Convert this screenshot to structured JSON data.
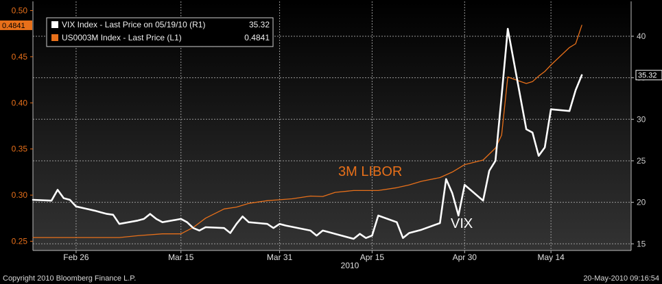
{
  "chart_data": {
    "type": "line",
    "left_axis": {
      "ticks": [
        0.25,
        0.3,
        0.35,
        0.4,
        0.45,
        0.5
      ],
      "ylim": [
        0.24,
        0.51
      ],
      "color": "#e8701a"
    },
    "right_axis": {
      "ticks": [
        15,
        20,
        25,
        30,
        35,
        40
      ],
      "ylim": [
        14.2,
        44.2
      ],
      "color": "#cccccc"
    },
    "x_ticks": [
      {
        "label": "Feb 26",
        "date": "2010-02-26"
      },
      {
        "label": "Mar 15",
        "date": "2010-03-15"
      },
      {
        "label": "Mar 31",
        "date": "2010-03-31"
      },
      {
        "label": "Apr 15",
        "date": "2010-04-15"
      },
      {
        "label": "Apr 30",
        "date": "2010-04-30"
      },
      {
        "label": "May 14",
        "date": "2010-05-14"
      }
    ],
    "year_label": "2010",
    "xlim": [
      "2010-02-19",
      "2010-05-27"
    ],
    "grid": true,
    "series": [
      {
        "name": "VIX Index - Last Price on 05/19/10 (R1)",
        "legend_value": "35.32",
        "color": "#ffffff",
        "axis": "right",
        "x": [
          "2010-02-19",
          "2010-02-22",
          "2010-02-23",
          "2010-02-24",
          "2010-02-25",
          "2010-02-26",
          "2010-03-01",
          "2010-03-02",
          "2010-03-03",
          "2010-03-04",
          "2010-03-05",
          "2010-03-08",
          "2010-03-09",
          "2010-03-10",
          "2010-03-11",
          "2010-03-12",
          "2010-03-15",
          "2010-03-16",
          "2010-03-17",
          "2010-03-18",
          "2010-03-19",
          "2010-03-22",
          "2010-03-23",
          "2010-03-24",
          "2010-03-25",
          "2010-03-26",
          "2010-03-29",
          "2010-03-30",
          "2010-03-31",
          "2010-04-01",
          "2010-04-05",
          "2010-04-06",
          "2010-04-07",
          "2010-04-08",
          "2010-04-09",
          "2010-04-12",
          "2010-04-13",
          "2010-04-14",
          "2010-04-15",
          "2010-04-16",
          "2010-04-19",
          "2010-04-20",
          "2010-04-21",
          "2010-04-22",
          "2010-04-23",
          "2010-04-26",
          "2010-04-27",
          "2010-04-28",
          "2010-04-29",
          "2010-04-30",
          "2010-05-03",
          "2010-05-04",
          "2010-05-05",
          "2010-05-06",
          "2010-05-07",
          "2010-05-10",
          "2010-05-11",
          "2010-05-12",
          "2010-05-13",
          "2010-05-14",
          "2010-05-17",
          "2010-05-18",
          "2010-05-19"
        ],
        "values": [
          20.3,
          20.2,
          21.5,
          20.5,
          20.3,
          19.5,
          19.0,
          18.8,
          18.6,
          18.5,
          17.4,
          17.8,
          18.0,
          18.6,
          18.0,
          17.6,
          18.0,
          17.6,
          16.9,
          16.6,
          17.0,
          16.9,
          16.3,
          17.4,
          18.3,
          17.6,
          17.4,
          16.9,
          17.4,
          17.2,
          16.6,
          16.0,
          16.6,
          16.4,
          16.2,
          15.6,
          16.2,
          15.7,
          16.0,
          18.4,
          17.6,
          15.7,
          16.3,
          16.5,
          16.7,
          17.5,
          22.8,
          21.1,
          18.4,
          22.1,
          20.2,
          23.8,
          25.0,
          32.8,
          40.9,
          28.8,
          28.4,
          25.6,
          26.6,
          31.2,
          31.0,
          33.5,
          35.32
        ]
      },
      {
        "name": "US0003M Index - Last Price (L1)",
        "legend_value": "0.4841",
        "color": "#e8701a",
        "axis": "left",
        "x": [
          "2010-02-19",
          "2010-03-01",
          "2010-03-05",
          "2010-03-08",
          "2010-03-12",
          "2010-03-15",
          "2010-03-17",
          "2010-03-19",
          "2010-03-22",
          "2010-03-24",
          "2010-03-26",
          "2010-03-29",
          "2010-03-31",
          "2010-04-02",
          "2010-04-05",
          "2010-04-07",
          "2010-04-09",
          "2010-04-12",
          "2010-04-14",
          "2010-04-16",
          "2010-04-19",
          "2010-04-21",
          "2010-04-23",
          "2010-04-26",
          "2010-04-28",
          "2010-04-30",
          "2010-05-03",
          "2010-05-05",
          "2010-05-06",
          "2010-05-07",
          "2010-05-10",
          "2010-05-11",
          "2010-05-12",
          "2010-05-13",
          "2010-05-14",
          "2010-05-17",
          "2010-05-18",
          "2010-05-19"
        ],
        "values": [
          0.254,
          0.254,
          0.254,
          0.256,
          0.258,
          0.258,
          0.265,
          0.275,
          0.285,
          0.287,
          0.291,
          0.294,
          0.295,
          0.296,
          0.299,
          0.2985,
          0.303,
          0.305,
          0.305,
          0.305,
          0.308,
          0.311,
          0.315,
          0.319,
          0.325,
          0.333,
          0.338,
          0.351,
          0.365,
          0.428,
          0.421,
          0.423,
          0.429,
          0.434,
          0.441,
          0.46,
          0.464,
          0.4841
        ]
      }
    ],
    "annotations": [
      {
        "text": "3M LIBOR",
        "color": "#e8701a"
      },
      {
        "text": "VIX",
        "color": "#ffffff"
      }
    ],
    "left_badge": "0.4841",
    "right_badge": "35.32"
  },
  "footer": {
    "copyright": "Copyright 2010 Bloomberg Finance L.P.",
    "timestamp": "20-May-2010 09:16:54"
  }
}
